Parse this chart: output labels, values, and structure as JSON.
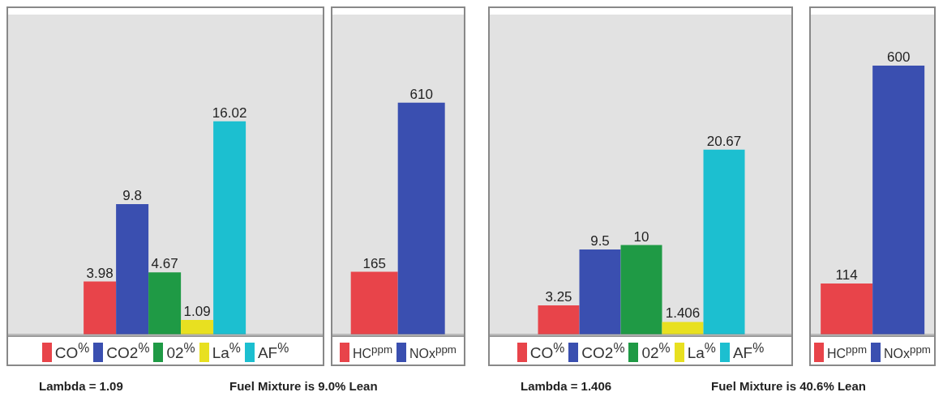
{
  "chart_data": [
    {
      "type": "bar",
      "categories": [
        null
      ],
      "data_labels": true,
      "legend": "bottom",
      "series": [
        {
          "name": "CO$^{%}$",
          "color": "#e8444a",
          "values": [
            3.98
          ]
        },
        {
          "name": "CO2$^{%}$",
          "color": "#3a4fb0",
          "values": [
            9.8
          ]
        },
        {
          "name": "02$^{%}$",
          "color": "#1f9a45",
          "values": [
            4.67
          ]
        },
        {
          "name": "La$^{%}$",
          "color": "#e8e020",
          "values": [
            1.09
          ]
        },
        {
          "name": "AF$^{%}$",
          "color": "#1cbfd0",
          "values": [
            16.02
          ]
        }
      ],
      "annotations": [
        "Lambda = 1.09",
        "Fuel Mixture is 9.0% Lean"
      ]
    },
    {
      "type": "bar",
      "categories": [
        null
      ],
      "data_labels": true,
      "legend": "bottom",
      "series": [
        {
          "name": "HC$^{ppm}$",
          "color": "#e8444a",
          "values": [
            165
          ]
        },
        {
          "name": "NOx$^{ppm}$",
          "color": "#3a4fb0",
          "values": [
            610
          ]
        }
      ]
    },
    {
      "type": "bar",
      "categories": [
        null
      ],
      "data_labels": true,
      "legend": "bottom",
      "series": [
        {
          "name": "CO$^{%}$",
          "color": "#e8444a",
          "values": [
            3.25
          ]
        },
        {
          "name": "CO2$^{%}$",
          "color": "#3a4fb0",
          "values": [
            9.5
          ]
        },
        {
          "name": "02$^{%}$",
          "color": "#1f9a45",
          "values": [
            10
          ]
        },
        {
          "name": "La$^{%}$",
          "color": "#e8e020",
          "values": [
            1.406
          ]
        },
        {
          "name": "AF$^{%}$",
          "color": "#1cbfd0",
          "values": [
            20.67
          ]
        }
      ],
      "annotations": [
        "Lambda = 1.406",
        "Fuel Mixture is 40.6% Lean"
      ]
    },
    {
      "type": "bar",
      "categories": [
        null
      ],
      "data_labels": true,
      "legend": "bottom",
      "series": [
        {
          "name": "HC$^{ppm}$",
          "color": "#e8444a",
          "values": [
            114
          ]
        },
        {
          "name": "NOx$^{ppm}$",
          "color": "#3a4fb0",
          "values": [
            600
          ]
        }
      ]
    }
  ]
}
